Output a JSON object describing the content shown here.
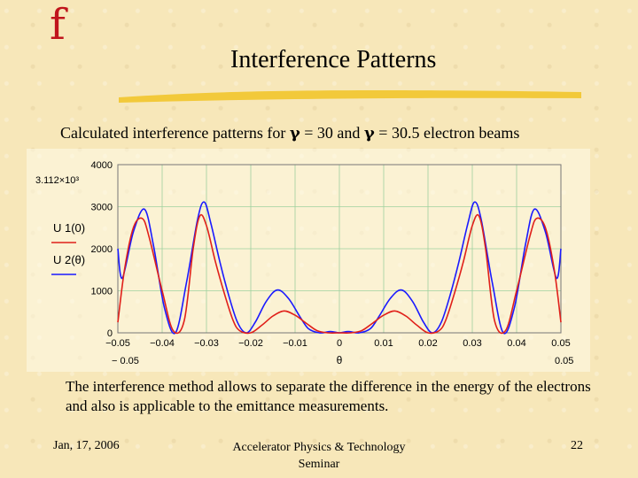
{
  "slide": {
    "logo": "f",
    "title": "Interference Patterns",
    "caption_parts": [
      "Calculated interference patterns for ",
      "γ",
      " = 30 and ",
      "γ",
      " = 30.5 electron beams"
    ],
    "description": "The interference method allows to separate the difference in the energy of the electrons and also is applicable to the emittance measurements.",
    "footer_left": "Jan, 17, 2006",
    "footer_center": "Accelerator Physics & Technology Seminar",
    "footer_right": "22"
  },
  "colors": {
    "series1": "#1a1aff",
    "series2": "#e0201a",
    "logo": "#c0141c",
    "underline": "#f2c93a"
  },
  "chart_data": {
    "type": "line",
    "title": "",
    "xlabel": "θ",
    "ylabel_series": [
      "U 1(0)",
      "U 2(θ)"
    ],
    "xlim": [
      -0.05,
      0.05
    ],
    "ylim": [
      0,
      4000
    ],
    "y_ticks": [
      "4000",
      "3000",
      "2000",
      "1000",
      "0"
    ],
    "y_top_annotation": "3.112×10³",
    "x_ticks": [
      "−0.05",
      "−0.04",
      "−0.03",
      "−0.02",
      "−0.01",
      "0",
      "0.01",
      "0.02",
      "0.03",
      "0.04",
      "0.05"
    ],
    "x_min_label": "− 0.05",
    "x_max_label": "0.05",
    "grid": true,
    "series": [
      {
        "name": "U 1(0)",
        "color": "#1a1aff",
        "x": [
          -0.05,
          -0.049,
          -0.0465,
          -0.044,
          -0.042,
          -0.0395,
          -0.037,
          -0.0345,
          -0.032,
          -0.0305,
          -0.029,
          -0.027,
          -0.025,
          -0.023,
          -0.021,
          -0.019,
          -0.0165,
          -0.014,
          -0.0115,
          -0.009,
          -0.007,
          -0.0045,
          -0.002,
          0,
          0.002,
          0.0045,
          0.007,
          0.009,
          0.0115,
          0.014,
          0.0165,
          0.019,
          0.021,
          0.023,
          0.025,
          0.027,
          0.029,
          0.0305,
          0.032,
          0.0345,
          0.037,
          0.0395,
          0.042,
          0.044,
          0.0465,
          0.049,
          0.05
        ],
        "y": [
          2000,
          1300,
          2400,
          2940,
          2100,
          600,
          0,
          1200,
          2700,
          3112,
          2600,
          1700,
          900,
          250,
          0,
          250,
          750,
          1020,
          820,
          400,
          100,
          0,
          30,
          0,
          30,
          0,
          100,
          400,
          820,
          1020,
          750,
          250,
          0,
          250,
          900,
          1700,
          2600,
          3112,
          2700,
          1200,
          0,
          600,
          2100,
          2940,
          2400,
          1300,
          2000
        ]
      },
      {
        "name": "U 2(θ)",
        "color": "#e0201a",
        "x": [
          -0.05,
          -0.0485,
          -0.0465,
          -0.0445,
          -0.043,
          -0.04,
          -0.0375,
          -0.035,
          -0.033,
          -0.0315,
          -0.03,
          -0.028,
          -0.026,
          -0.024,
          -0.0225,
          -0.02,
          -0.0175,
          -0.015,
          -0.0125,
          -0.01,
          -0.0075,
          -0.005,
          -0.0025,
          0,
          0.0025,
          0.005,
          0.0075,
          0.01,
          0.0125,
          0.015,
          0.0175,
          0.02,
          0.0225,
          0.024,
          0.026,
          0.028,
          0.03,
          0.0315,
          0.033,
          0.035,
          0.0375,
          0.04,
          0.043,
          0.0445,
          0.0465,
          0.0485,
          0.05
        ],
        "y": [
          250,
          1500,
          2500,
          2720,
          2300,
          1000,
          50,
          300,
          2000,
          2780,
          2550,
          1700,
          950,
          300,
          50,
          0,
          180,
          400,
          520,
          420,
          230,
          50,
          0,
          0,
          0,
          50,
          230,
          420,
          520,
          400,
          180,
          0,
          50,
          300,
          950,
          1700,
          2550,
          2780,
          2000,
          300,
          50,
          1000,
          2300,
          2720,
          2500,
          1500,
          250
        ]
      }
    ]
  }
}
